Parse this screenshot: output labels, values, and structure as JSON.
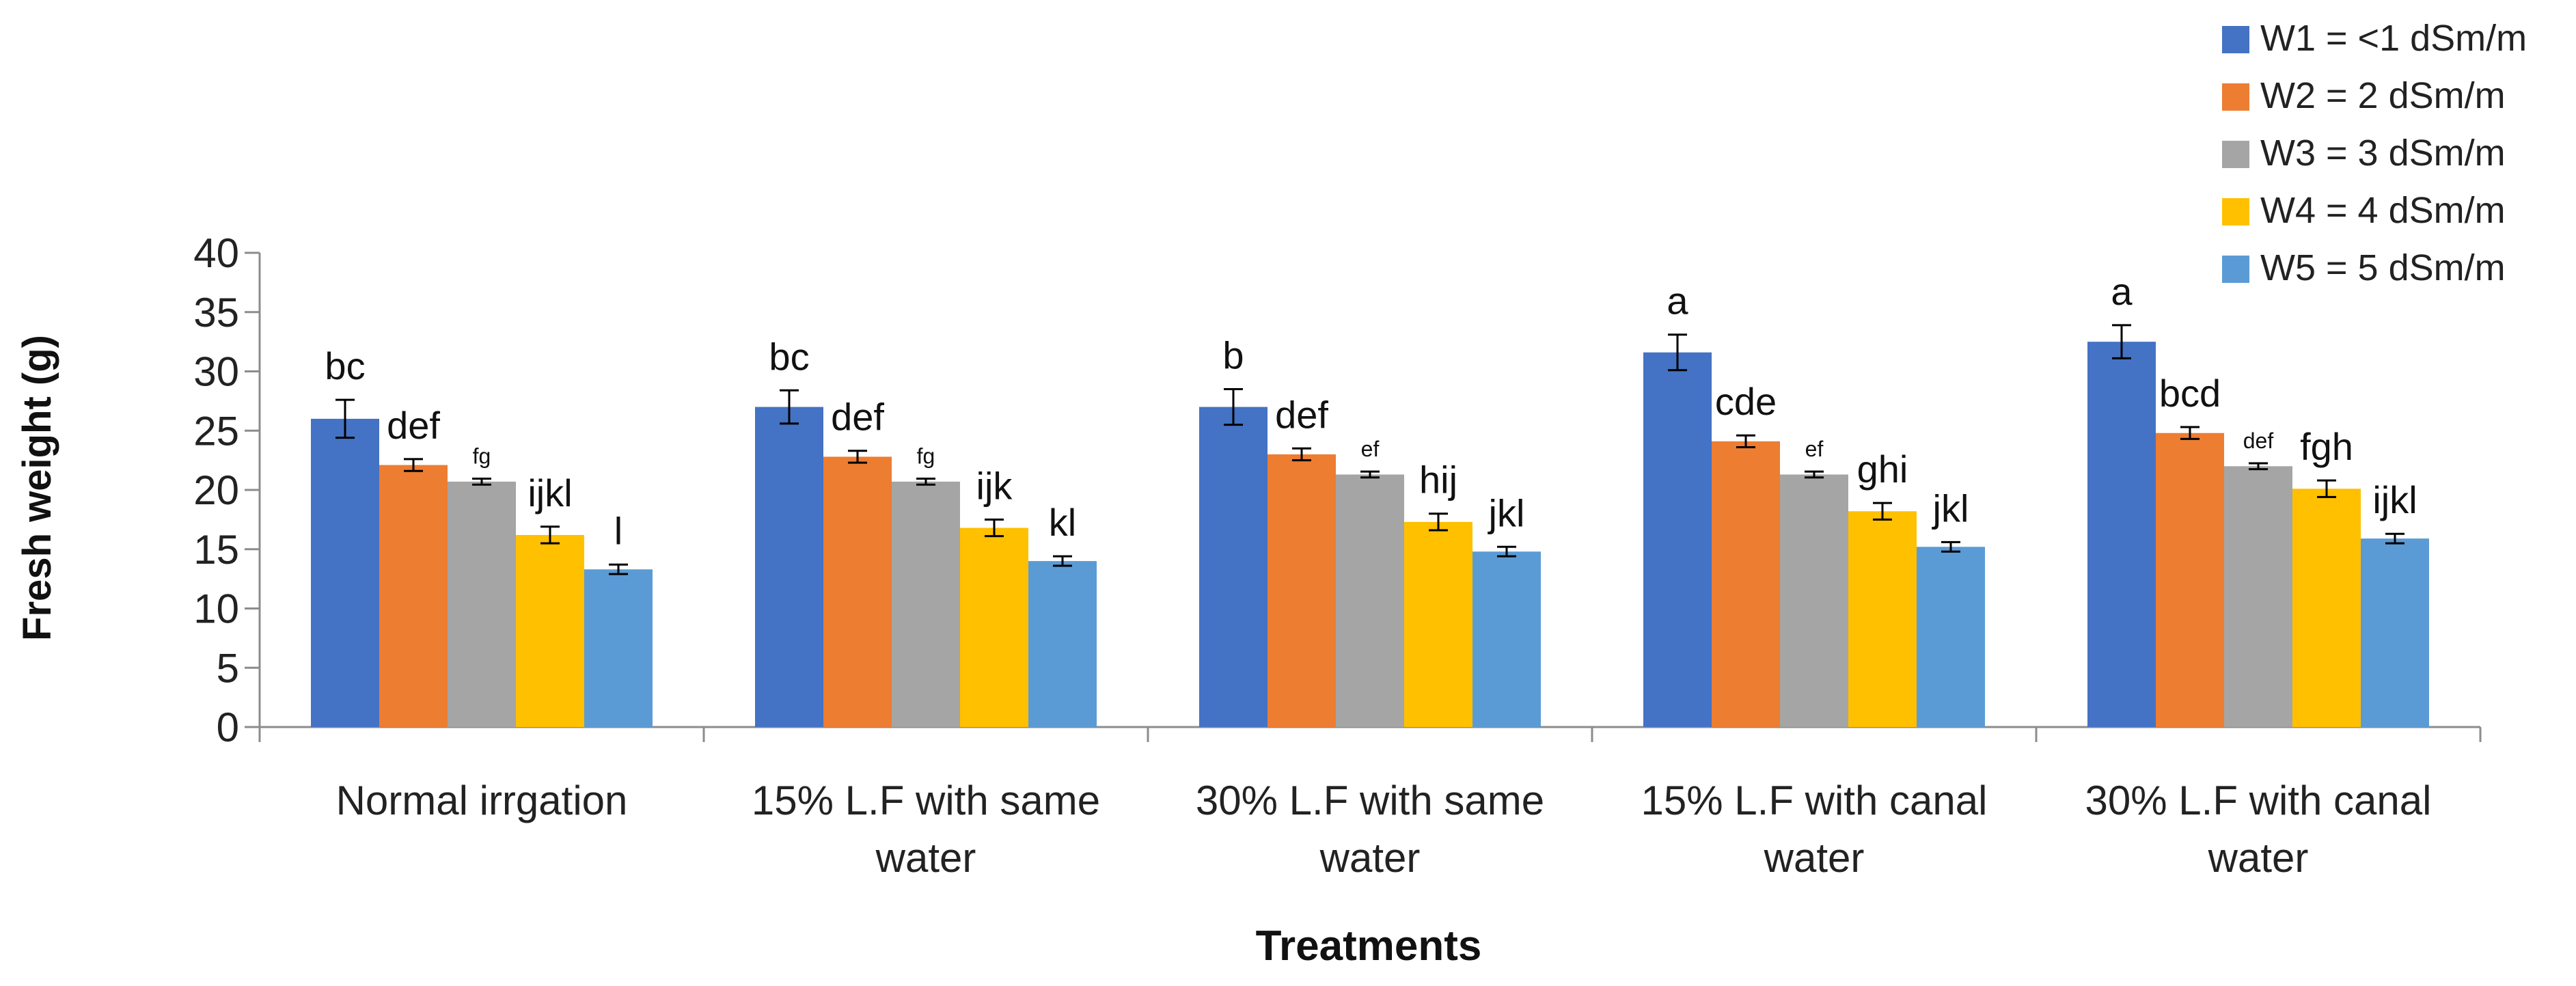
{
  "chart_data": {
    "type": "bar",
    "title": "",
    "xlabel": "Treatments",
    "ylabel": "Fresh weight (g)",
    "ylim": [
      0,
      40
    ],
    "yticks": [
      0,
      5,
      10,
      15,
      20,
      25,
      30,
      35,
      40
    ],
    "grid": false,
    "legend_position": "top-right",
    "categories": [
      [
        "Normal irrgation"
      ],
      [
        "15% L.F with same",
        "water"
      ],
      [
        "30% L.F with same",
        "water"
      ],
      [
        "15% L.F with canal",
        "water"
      ],
      [
        "30% L.F with canal",
        "water"
      ]
    ],
    "series": [
      {
        "name": "W1 = <1 dSm/m",
        "color": "#4472C4",
        "values": [
          26.0,
          27.0,
          27.0,
          31.6,
          32.5
        ],
        "errors": [
          1.6,
          1.4,
          1.5,
          1.5,
          1.4
        ],
        "labels": [
          "bc",
          "bc",
          "b",
          "a",
          "a"
        ],
        "label_size": [
          "normal",
          "normal",
          "normal",
          "normal",
          "normal"
        ]
      },
      {
        "name": "W2 = 2 dSm/m",
        "color": "#ED7D31",
        "values": [
          22.1,
          22.8,
          23.0,
          24.1,
          24.8
        ],
        "errors": [
          0.5,
          0.5,
          0.5,
          0.5,
          0.5
        ],
        "labels": [
          "def",
          "def",
          "def",
          "cde",
          "bcd"
        ],
        "label_size": [
          "normal",
          "normal",
          "normal",
          "normal",
          "normal"
        ]
      },
      {
        "name": "W3 = 3 dSm/m",
        "color": "#A5A5A5",
        "values": [
          20.7,
          20.7,
          21.3,
          21.3,
          22.0
        ],
        "errors": [
          0.25,
          0.25,
          0.25,
          0.25,
          0.25
        ],
        "labels": [
          "fg",
          "fg",
          "ef",
          "ef",
          "def"
        ],
        "label_size": [
          "small",
          "small",
          "small",
          "small",
          "small"
        ]
      },
      {
        "name": "W4 = 4 dSm/m",
        "color": "#FFC000",
        "values": [
          16.2,
          16.8,
          17.3,
          18.2,
          20.1
        ],
        "errors": [
          0.7,
          0.7,
          0.7,
          0.7,
          0.7
        ],
        "labels": [
          "ijkl",
          "ijk",
          "hij",
          "ghi",
          "fgh"
        ],
        "label_size": [
          "normal",
          "normal",
          "normal",
          "normal",
          "normal"
        ]
      },
      {
        "name": "W5 = 5 dSm/m",
        "color": "#5B9BD5",
        "values": [
          13.3,
          14.0,
          14.8,
          15.2,
          15.9
        ],
        "errors": [
          0.4,
          0.4,
          0.4,
          0.4,
          0.4
        ],
        "labels": [
          "l",
          "kl",
          "jkl",
          "jkl",
          "ijkl"
        ],
        "label_size": [
          "normal",
          "normal",
          "normal",
          "normal",
          "normal"
        ]
      }
    ]
  }
}
